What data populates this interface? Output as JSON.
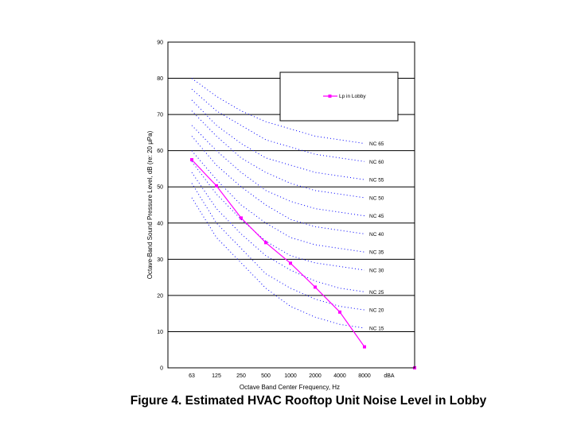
{
  "chart_data": {
    "type": "line",
    "ylabel": "Octave-Band Sound Pressure Level, dB (re: 20 μPa)",
    "xlabel": "Octave Band Center Frequency, Hz",
    "ylim": [
      0,
      90
    ],
    "yticks": [
      0,
      10,
      20,
      30,
      40,
      50,
      60,
      70,
      80,
      90
    ],
    "categories": [
      "63",
      "125",
      "250",
      "500",
      "1000",
      "2000",
      "4000",
      "8000",
      "dBA"
    ],
    "grid": "horizontal",
    "legend": "top-right inside plot",
    "series": [
      {
        "name": "Lp in Lobby",
        "color": "#ff00ff",
        "marker": "square",
        "values": [
          57.5,
          50.3,
          41.4,
          34.6,
          28.9,
          22.3,
          15.4,
          5.8,
          null
        ],
        "dba_point": 0
      }
    ],
    "nc_curves": [
      {
        "label": "NC 65",
        "values": [
          80,
          75,
          71,
          68,
          66,
          64,
          63,
          62
        ]
      },
      {
        "label": "NC 60",
        "values": [
          77,
          71,
          67,
          63,
          61,
          59,
          58,
          57
        ]
      },
      {
        "label": "NC 55",
        "values": [
          74,
          67,
          62,
          58,
          56,
          54,
          53,
          52
        ]
      },
      {
        "label": "NC 50",
        "values": [
          71,
          64,
          58,
          54,
          51,
          49,
          48,
          47
        ]
      },
      {
        "label": "NC 45",
        "values": [
          67,
          60,
          54,
          49,
          46,
          44,
          43,
          42
        ]
      },
      {
        "label": "NC 40",
        "values": [
          64,
          56,
          50,
          45,
          41,
          39,
          38,
          37
        ]
      },
      {
        "label": "NC 35",
        "values": [
          60,
          52,
          45,
          40,
          36,
          34,
          33,
          32
        ]
      },
      {
        "label": "NC 30",
        "values": [
          57,
          48,
          41,
          35,
          31,
          29,
          28,
          27
        ]
      },
      {
        "label": "NC 25",
        "values": [
          54,
          44,
          37,
          31,
          27,
          24,
          22,
          21
        ]
      },
      {
        "label": "NC 20",
        "values": [
          51,
          40,
          33,
          26,
          22,
          19,
          17,
          16
        ]
      },
      {
        "label": "NC 15",
        "values": [
          47,
          36,
          29,
          22,
          17,
          14,
          12,
          11
        ]
      }
    ],
    "nc_color": "#0000ff"
  },
  "caption": "Figure 4. Estimated HVAC Rooftop Unit Noise Level in Lobby"
}
